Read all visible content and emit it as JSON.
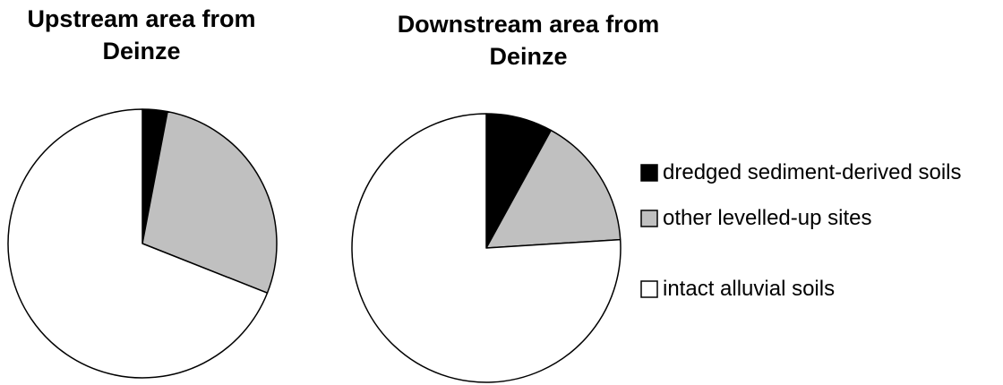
{
  "chart_data": [
    {
      "type": "pie",
      "title": [
        "Upstream area from",
        "Deinze"
      ],
      "values": [
        3,
        28,
        69
      ]
    },
    {
      "type": "pie",
      "title": [
        "Downstream area from",
        "Deinze"
      ],
      "values": [
        8,
        16,
        76
      ]
    }
  ],
  "legend": {
    "labels": [
      "dredged sediment-derived soils",
      "other levelled-up sites",
      "intact alluvial soils"
    ],
    "colors": [
      "#000000",
      "#c0c0c0",
      "#ffffff"
    ]
  }
}
